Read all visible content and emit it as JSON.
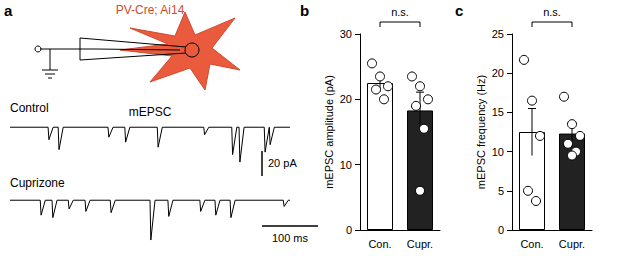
{
  "chart_data": [
    {
      "panel": "a",
      "type": "trace",
      "title": "mEPSC",
      "annotation": "PV-Cre; Ai14",
      "xlim": [
        0,
        500
      ],
      "ylim": [
        -40,
        5
      ],
      "tick_labels": false,
      "series": [
        {
          "name": "Control",
          "color": "#000000",
          "x": [
            68,
            86,
            175,
            205,
            263,
            346,
            396,
            409,
            454,
            463
          ],
          "values": [
            -10,
            -18,
            -8,
            -12,
            -16,
            -6,
            -22,
            -28,
            -20,
            -14
          ]
        },
        {
          "name": "Cuprizone",
          "color": "#000000",
          "x": [
            54,
            75,
            104,
            134,
            179,
            250,
            282,
            339,
            366,
            393,
            488
          ],
          "values": [
            -12,
            -14,
            -7,
            -9,
            -10,
            -32,
            -13,
            -9,
            -12,
            -14,
            -5
          ]
        }
      ],
      "scale_bars": [
        {
          "value": 20,
          "label": "20 pA"
        },
        {
          "value": 100,
          "label": "100 ms"
        }
      ]
    },
    {
      "panel": "b",
      "type": "bar",
      "ylabel": "mEPSC amplitude (pA)",
      "categories": [
        "Con.",
        "Cupr."
      ],
      "values": [
        22.5,
        18.3
      ],
      "errors": [
        1.3,
        2.8
      ],
      "points": [
        [
          25.5,
          23.5,
          22,
          21.5,
          20
        ],
        [
          23.5,
          22,
          20,
          19,
          15.5,
          6
        ]
      ],
      "colors": [
        "#ffffff",
        "#222222"
      ],
      "ylim": [
        0,
        30
      ],
      "yticks": [
        0,
        10,
        20,
        30
      ],
      "annotation": "n.s."
    },
    {
      "panel": "c",
      "type": "bar",
      "ylabel": "mEPSC frequency (Hz)",
      "categories": [
        "Con.",
        "Cupr."
      ],
      "values": [
        12.5,
        12.3
      ],
      "errors": [
        3.0,
        1.2
      ],
      "points": [
        [
          21.7,
          16.5,
          12,
          5,
          3.7
        ],
        [
          17,
          13.5,
          12,
          11,
          10,
          9.5
        ]
      ],
      "colors": [
        "#ffffff",
        "#222222"
      ],
      "ylim": [
        0,
        25
      ],
      "yticks": [
        0,
        5,
        10,
        15,
        20,
        25
      ],
      "annotation": "n.s."
    }
  ]
}
